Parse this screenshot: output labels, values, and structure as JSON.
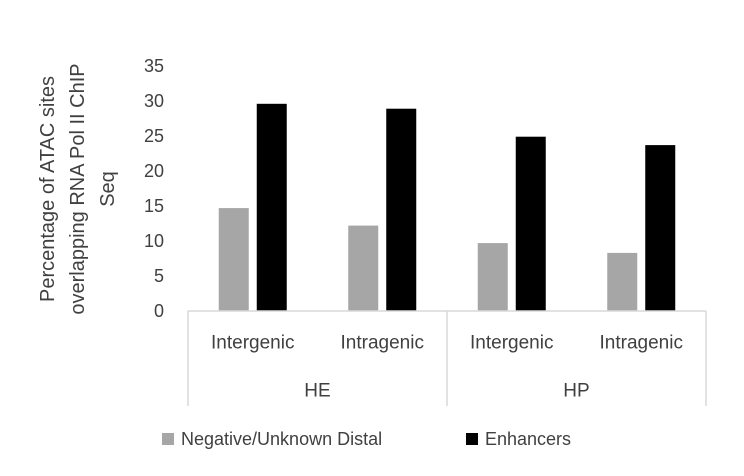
{
  "chart_data": {
    "type": "bar",
    "title": "",
    "ylabel": [
      "Percentage of ATAC sites",
      "overlapping RNA Pol II ChIP",
      "Seq"
    ],
    "ylim": [
      0,
      35
    ],
    "yticks": [
      0,
      5,
      10,
      15,
      20,
      25,
      30,
      35
    ],
    "grid": false,
    "legend_position": "bottom",
    "groups": [
      {
        "label": "HE",
        "categories": [
          "Intergenic",
          "Intragenic"
        ]
      },
      {
        "label": "HP",
        "categories": [
          "Intergenic",
          "Intragenic"
        ]
      }
    ],
    "series": [
      {
        "name": "Negative/Unknown Distal",
        "color": "#a6a6a6",
        "values": [
          14.7,
          12.2,
          9.7,
          8.3
        ]
      },
      {
        "name": "Enhancers",
        "color": "#000000",
        "values": [
          29.6,
          28.9,
          24.9,
          23.7
        ]
      }
    ]
  }
}
